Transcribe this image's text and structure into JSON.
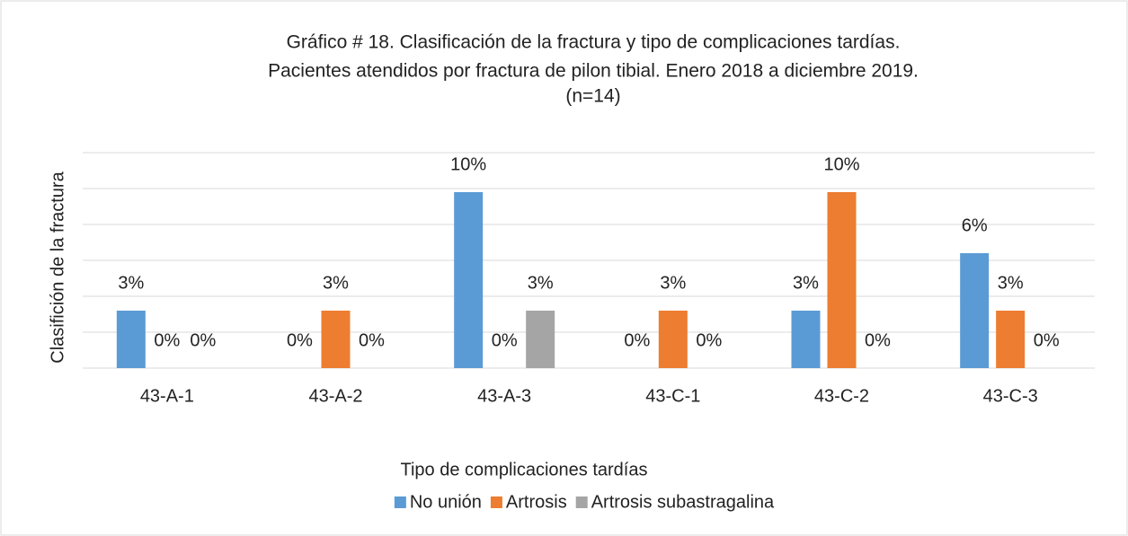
{
  "chart_data": {
    "type": "bar",
    "title": [
      "Gráfico # 18. Clasificación de la fractura y tipo de complicaciones tardías.",
      "Pacientes atendidos por fractura de pilon tibial. Enero 2018 a diciembre 2019.",
      "(n=14)"
    ],
    "y_label": "Clasifición de la fractura",
    "legend_title": "Tipo de complicaciones tardías",
    "categories": [
      "43-A-1",
      "43-A-2",
      "43-A-3",
      "43-C-1",
      "43-C-2",
      "43-C-3"
    ],
    "series": [
      {
        "name": "No unión",
        "color": "#5b9bd5",
        "values": [
          3.2,
          0,
          9.8,
          0,
          3.2,
          6.4
        ],
        "value_labels": [
          "3%",
          "0%",
          "10%",
          "0%",
          "3%",
          "6%"
        ]
      },
      {
        "name": "Artrosis",
        "color": "#ed7d31",
        "values": [
          0,
          3.2,
          0,
          3.2,
          9.8,
          3.2
        ],
        "value_labels": [
          "0%",
          "3%",
          "0%",
          "3%",
          "10%",
          "3%"
        ]
      },
      {
        "name": "Artrosis subastragalina",
        "color": "#a5a5a5",
        "values": [
          0,
          0,
          3.2,
          0,
          0,
          0
        ],
        "value_labels": [
          "0%",
          "0%",
          "3%",
          "0%",
          "0%",
          "0%"
        ]
      }
    ],
    "ylim": [
      0,
      12
    ],
    "yticks": [
      0,
      2,
      4,
      6,
      8,
      10,
      12
    ],
    "grid": true,
    "legend": "bottom"
  }
}
